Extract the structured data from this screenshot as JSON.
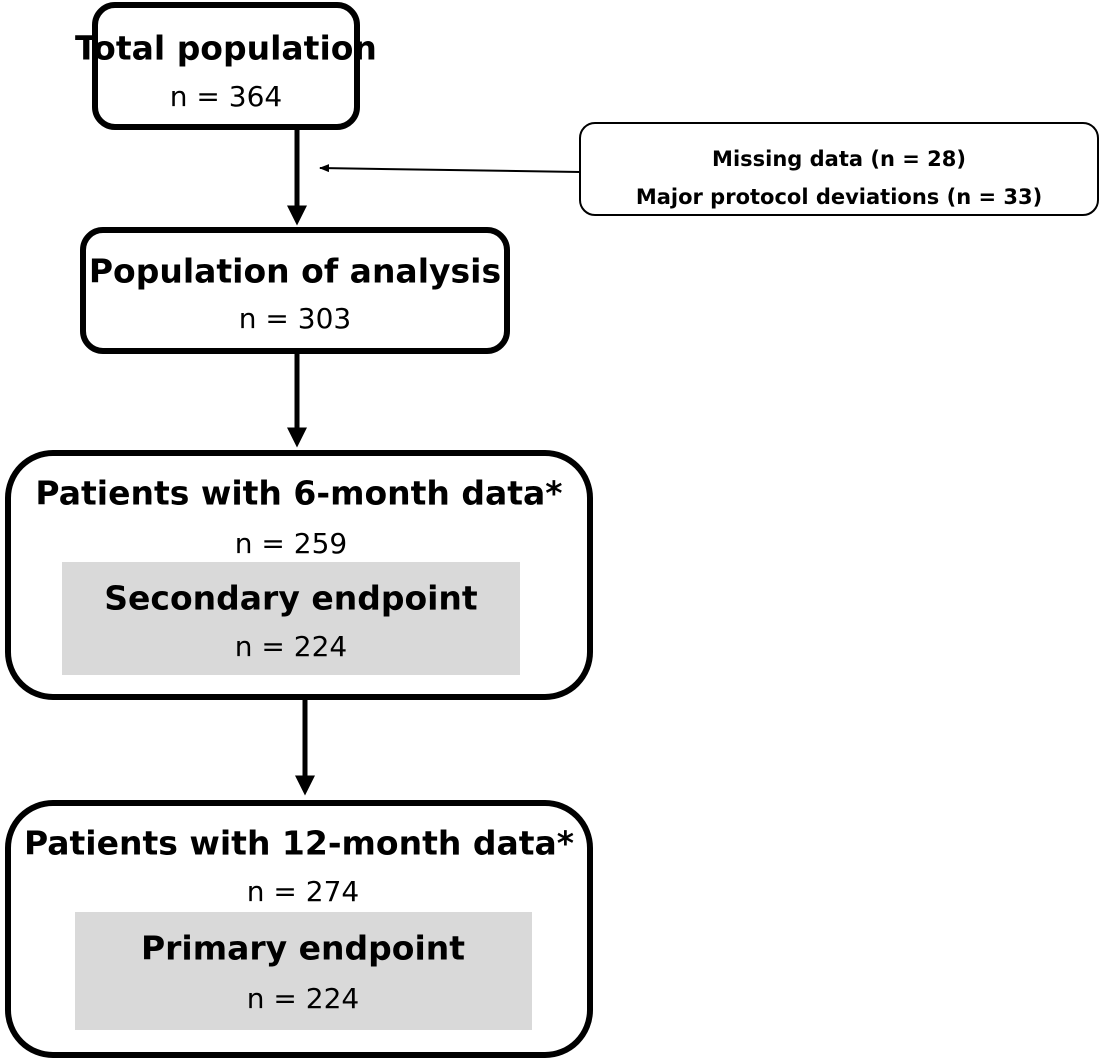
{
  "nodes": [
    {
      "title": "Total population",
      "count": "n  = 364"
    },
    {
      "title": "Population of analysis",
      "count": "n = 303"
    },
    {
      "title": "Patients with 6-month data*",
      "count": "n = 259",
      "sub": {
        "title": "Secondary endpoint",
        "count": "n = 224"
      }
    },
    {
      "title": "Patients with 12-month data*",
      "count": "n = 274",
      "sub": {
        "title": "Primary endpoint",
        "count": "n = 224"
      }
    }
  ],
  "exclusion": {
    "lines": [
      "Missing data (n = 28)",
      "Major protocol deviations (n = 33)"
    ]
  }
}
